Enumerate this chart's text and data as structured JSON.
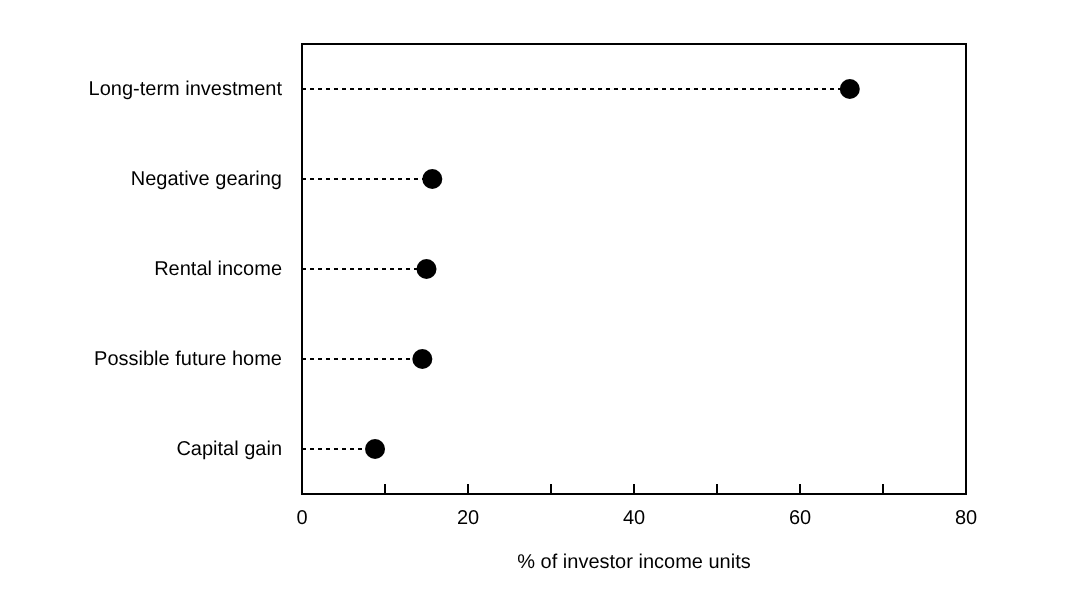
{
  "chart_data": {
    "type": "lollipop",
    "orientation": "horizontal",
    "xlabel": "% of investor income units",
    "categories": [
      "Long-term investment",
      "Negative gearing",
      "Rental income",
      "Possible future home",
      "Capital gain"
    ],
    "values": [
      66,
      15.7,
      15,
      14.5,
      8.8
    ],
    "color": "#000000",
    "xlim": [
      0,
      80
    ],
    "xticks": [
      0,
      {
        "value": 10,
        "label": null
      },
      20,
      {
        "value": 30,
        "label": null
      },
      40,
      {
        "value": 50,
        "label": null
      },
      60,
      {
        "value": 70,
        "label": null
      },
      80
    ],
    "grid": false,
    "legend": false,
    "marker": "circle",
    "line_style": "dotted"
  }
}
